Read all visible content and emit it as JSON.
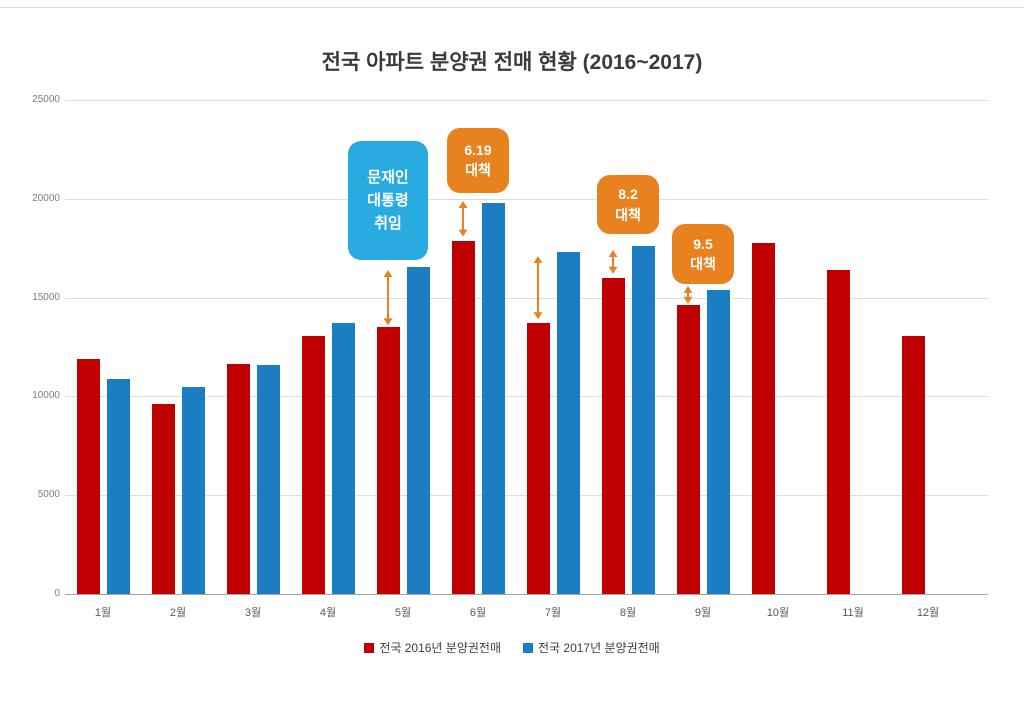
{
  "chart_data": {
    "type": "bar",
    "title": "전국 아파트 분양권 전매 현황 (2016~2017)",
    "categories": [
      "1월",
      "2월",
      "3월",
      "4월",
      "5월",
      "6월",
      "7월",
      "8월",
      "9월",
      "10월",
      "11월",
      "12월"
    ],
    "series": [
      {
        "name": "전국 2016년 분양권전매",
        "color": "#C00000",
        "values": [
          11900,
          9600,
          11650,
          13050,
          13500,
          17850,
          13700,
          16000,
          14650,
          17750,
          16400,
          13050
        ]
      },
      {
        "name": "전국 2017년 분양권전매",
        "color": "#1B7EC2",
        "values": [
          10900,
          10500,
          11600,
          13700,
          16550,
          19800,
          17300,
          17600,
          15400,
          null,
          null,
          null
        ]
      }
    ],
    "ylim": [
      0,
      25000
    ],
    "ytick_step": 5000,
    "ytick_labels": [
      "0",
      "5000",
      "10000",
      "15000",
      "20000",
      "25000"
    ],
    "grid": true,
    "legend_position": "bottom",
    "annotation_colors": {
      "blue": "#29ABE2",
      "orange": "#E8821E"
    },
    "annotations": [
      {
        "id": "moon-inauguration",
        "lines": [
          "문재인",
          "대통령",
          "취임"
        ],
        "color": "blue",
        "month_index": 4,
        "anchor": "red",
        "top_value": 22900,
        "bottom_value": 16900
      },
      {
        "id": "policy-6-19",
        "lines": [
          "6.19",
          "대책"
        ],
        "color": "orange",
        "month_index": 5,
        "anchor": "group",
        "top_value": 23600,
        "bottom_value": 20300
      },
      {
        "id": "policy-8-2",
        "lines": [
          "8.2",
          "대책"
        ],
        "color": "orange",
        "month_index": 7,
        "anchor": "group",
        "top_value": 21200,
        "bottom_value": 18200
      },
      {
        "id": "policy-9-5",
        "lines": [
          "9.5",
          "대책"
        ],
        "color": "orange",
        "month_index": 8,
        "anchor": "group",
        "top_value": 18700,
        "bottom_value": 15700
      }
    ],
    "arrows": [
      {
        "month_index": 4,
        "anchor": "red",
        "from_value": 13600,
        "to_value": 16400
      },
      {
        "month_index": 5,
        "anchor": "red",
        "from_value": 18100,
        "to_value": 19900
      },
      {
        "month_index": 6,
        "anchor": "red",
        "from_value": 13900,
        "to_value": 17100
      },
      {
        "month_index": 7,
        "anchor": "red",
        "from_value": 16200,
        "to_value": 17400
      },
      {
        "month_index": 8,
        "anchor": "red",
        "from_value": 14700,
        "to_value": 15600
      }
    ]
  }
}
